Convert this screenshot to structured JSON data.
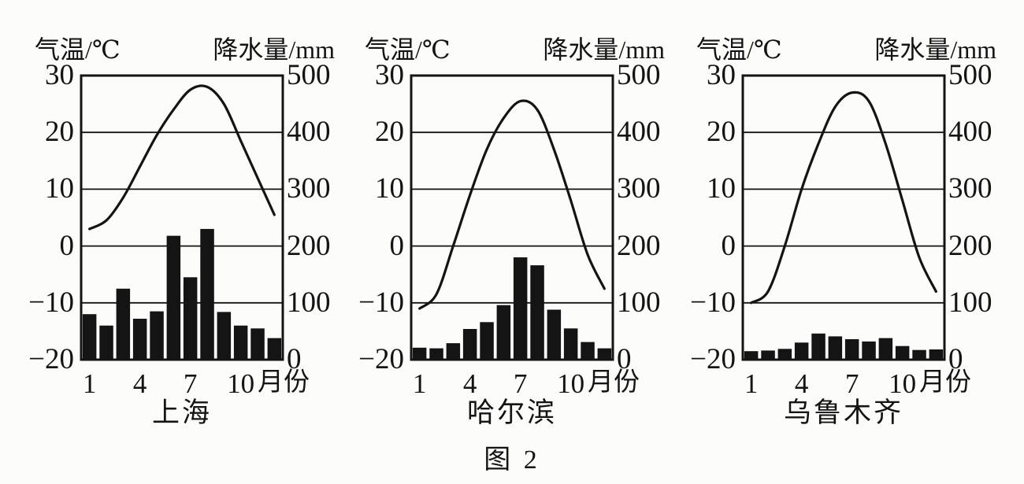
{
  "figure_caption": "图 2",
  "colors": {
    "ink": "#141414",
    "background": "#fcfcfa"
  },
  "chart_data": [
    {
      "type": "bar+line climate chart",
      "title": "上海",
      "ylabel_left": "气温/℃",
      "ylabel_right": "降水量/mm",
      "xlabel": "月份",
      "temp_ylim": [
        -20,
        30
      ],
      "precip_ylim": [
        0,
        500
      ],
      "left_ticks_c": [
        30,
        20,
        10,
        0,
        -10,
        -20
      ],
      "right_ticks_mm": [
        500,
        400,
        300,
        200,
        100,
        0
      ],
      "x_ticks": [
        {
          "label": "1",
          "month": 1
        },
        {
          "label": "4",
          "month": 4
        },
        {
          "label": "7",
          "month": 7
        },
        {
          "label": "10",
          "month": 10
        }
      ],
      "months": [
        1,
        2,
        3,
        4,
        5,
        6,
        7,
        8,
        9,
        10,
        11,
        12
      ],
      "series": [
        {
          "name": "气温",
          "type": "line",
          "axis": "left",
          "values": [
            3,
            4.5,
            8.5,
            14,
            19.5,
            24,
            27.5,
            28,
            25,
            18.5,
            12,
            5.5
          ]
        },
        {
          "name": "降水量",
          "type": "bar",
          "axis": "right",
          "values": [
            80,
            60,
            125,
            72,
            85,
            218,
            145,
            230,
            84,
            60,
            55,
            38
          ]
        }
      ],
      "grid": true,
      "legend": "none"
    },
    {
      "type": "bar+line climate chart",
      "title": "哈尔滨",
      "ylabel_left": "气温/℃",
      "ylabel_right": "降水量/mm",
      "xlabel": "月份",
      "temp_ylim": [
        -20,
        30
      ],
      "precip_ylim": [
        0,
        500
      ],
      "left_ticks_c": [
        30,
        20,
        10,
        0,
        -10,
        -20
      ],
      "right_ticks_mm": [
        500,
        400,
        300,
        200,
        100,
        0
      ],
      "x_ticks": [
        {
          "label": "1",
          "month": 1
        },
        {
          "label": "4",
          "month": 4
        },
        {
          "label": "7",
          "month": 7
        },
        {
          "label": "10",
          "month": 10
        }
      ],
      "months": [
        1,
        2,
        3,
        4,
        5,
        6,
        7,
        8,
        9,
        10,
        11,
        12
      ],
      "series": [
        {
          "name": "气温",
          "type": "line",
          "axis": "left",
          "values": [
            -11,
            -8.5,
            0,
            9,
            17,
            22.5,
            25.5,
            24,
            17,
            8,
            -1.5,
            -7.5
          ]
        },
        {
          "name": "降水量",
          "type": "bar",
          "axis": "right",
          "values": [
            21,
            20,
            29,
            54,
            66,
            96,
            180,
            166,
            88,
            55,
            31,
            20
          ]
        }
      ],
      "grid": true,
      "legend": "none"
    },
    {
      "type": "bar+line climate chart",
      "title": "乌鲁木齐",
      "ylabel_left": "气温/℃",
      "ylabel_right": "降水量/mm",
      "xlabel": "月份",
      "temp_ylim": [
        -20,
        30
      ],
      "precip_ylim": [
        0,
        500
      ],
      "left_ticks_c": [
        30,
        20,
        10,
        0,
        -10,
        -20
      ],
      "right_ticks_mm": [
        500,
        400,
        300,
        200,
        100,
        0
      ],
      "x_ticks": [
        {
          "label": "1",
          "month": 1
        },
        {
          "label": "4",
          "month": 4
        },
        {
          "label": "7",
          "month": 7
        },
        {
          "label": "10",
          "month": 10
        }
      ],
      "months": [
        1,
        2,
        3,
        4,
        5,
        6,
        7,
        8,
        9,
        10,
        11,
        12
      ],
      "series": [
        {
          "name": "气温",
          "type": "line",
          "axis": "left",
          "values": [
            -10,
            -8,
            0,
            10,
            18,
            24.5,
            27,
            25.5,
            18,
            8,
            -2,
            -8
          ]
        },
        {
          "name": "降水量",
          "type": "bar",
          "axis": "right",
          "values": [
            15,
            16,
            19,
            30,
            46,
            41,
            36,
            32,
            38,
            24,
            17,
            18
          ]
        }
      ],
      "grid": true,
      "legend": "none"
    }
  ]
}
